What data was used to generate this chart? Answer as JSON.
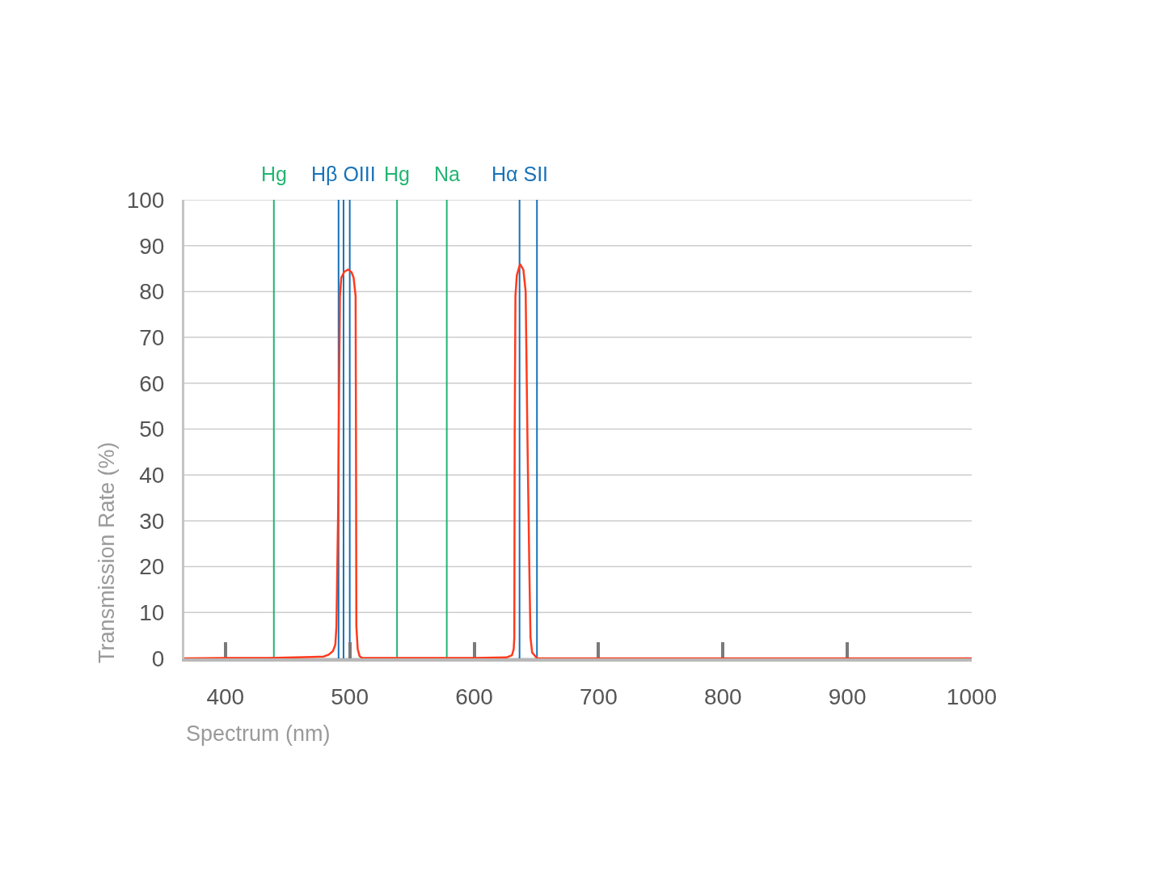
{
  "chart_data": {
    "type": "line",
    "xlabel": "Spectrum (nm)",
    "ylabel": "Transmission Rate (%)",
    "x": [
      367,
      400,
      435,
      470,
      479,
      483,
      486.5,
      488.4,
      489.3,
      490.6,
      491.5,
      492.1,
      493.2,
      495.6,
      498.7,
      501.4,
      503.1,
      504.7,
      505.0,
      505.3,
      506.4,
      507.9,
      509.8,
      560,
      600,
      626,
      630.4,
      631.8,
      632.3,
      632.6,
      633.2,
      634.3,
      636.9,
      639.6,
      641.4,
      642.8,
      644.4,
      645.3,
      646.6,
      650.6,
      1000
    ],
    "series": [
      {
        "color": "#ff3b1e",
        "values": [
          0,
          0.1,
          0.1,
          0.3,
          0.4,
          0.8,
          1.6,
          3,
          7,
          31,
          61,
          79,
          83,
          84.3,
          84.8,
          84.2,
          83,
          79,
          50,
          7,
          2,
          0.5,
          0.1,
          0.1,
          0.1,
          0.2,
          0.7,
          2,
          4.6,
          49,
          79,
          83.5,
          86,
          84.7,
          80,
          49,
          19,
          4.6,
          1.3,
          0,
          0
        ]
      }
    ],
    "xlim": [
      367,
      1000
    ],
    "xticks": [
      400,
      500,
      600,
      700,
      800,
      900,
      1000
    ],
    "ylim": [
      0,
      100
    ],
    "yticks": [
      0,
      10,
      20,
      30,
      40,
      50,
      60,
      70,
      80,
      90,
      100
    ],
    "grid": "y",
    "ref_lines": [
      {
        "axis": "x",
        "value": 439,
        "label": "Hg",
        "color": "#22b573"
      },
      {
        "axis": "x",
        "value": 491,
        "color": "#1772b8"
      },
      {
        "axis": "x",
        "value": 495,
        "label": "Hβ OIII",
        "color": "#1772b8"
      },
      {
        "axis": "x",
        "value": 500,
        "color": "#1772b8"
      },
      {
        "axis": "x",
        "value": 538,
        "label": "Hg",
        "color": "#22b573"
      },
      {
        "axis": "x",
        "value": 578,
        "label": "Na",
        "color": "#22b573"
      },
      {
        "axis": "x",
        "value": 636.5,
        "label": "Hα SII",
        "color": "#1772b8"
      },
      {
        "axis": "x",
        "value": 650.5,
        "color": "#1772b8"
      }
    ]
  }
}
